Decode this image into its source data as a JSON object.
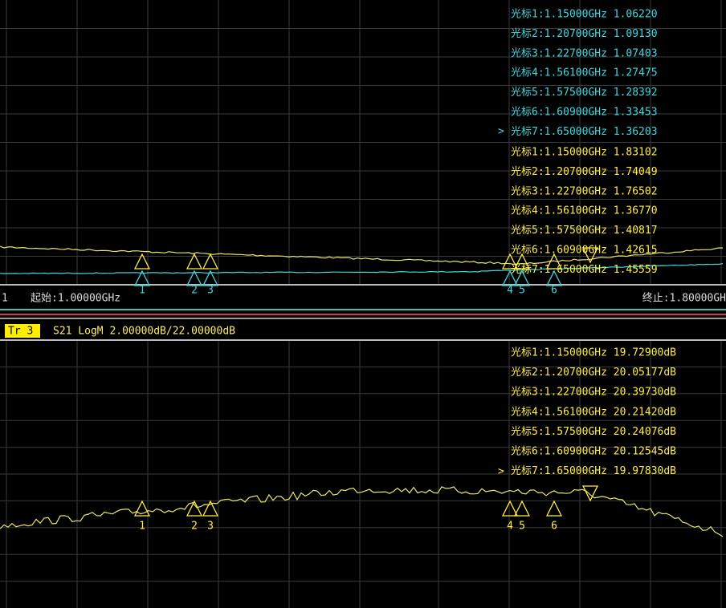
{
  "top_panel": {
    "markers_trace1": [
      "光标1:1.15000GHz 1.06220",
      "光标2:1.20700GHz 1.09130",
      "光标3:1.22700GHz 1.07403",
      "光标4:1.56100GHz 1.27475",
      "光标5:1.57500GHz 1.28392",
      "光标6:1.60900GHz 1.33453",
      "光标7:1.65000GHz 1.36203"
    ],
    "markers_trace2": [
      "光标1:1.15000GHz 1.83102",
      "光标2:1.20700GHz 1.74049",
      "光标3:1.22700GHz 1.76502",
      "光标4:1.56100GHz 1.36770",
      "光标5:1.57500GHz 1.40817",
      "光标6:1.60900GHz 1.42615",
      "光标7:1.65000GHz 1.45559"
    ],
    "active_indicator": ">",
    "marker_labels": [
      "1",
      "2",
      "3",
      "4",
      "5",
      "6"
    ]
  },
  "status": {
    "channel": "1",
    "start": "起始:1.00000GHz",
    "stop": "终止:1.80000GH"
  },
  "bottom_panel": {
    "trace_tag": "Tr 3",
    "trace_info": "S21 LogM 2.00000dB/22.00000dB",
    "markers": [
      "光标1:1.15000GHz 19.72900dB",
      "光标2:1.20700GHz 20.05177dB",
      "光标3:1.22700GHz 20.39730dB",
      "光标4:1.56100GHz 20.21420dB",
      "光标5:1.57500GHz 20.24076dB",
      "光标6:1.60900GHz 20.12545dB",
      "光标7:1.65000GHz 19.97830dB"
    ],
    "active_indicator": ">",
    "marker_labels": [
      "1",
      "2",
      "3",
      "4",
      "5",
      "6"
    ]
  }
}
